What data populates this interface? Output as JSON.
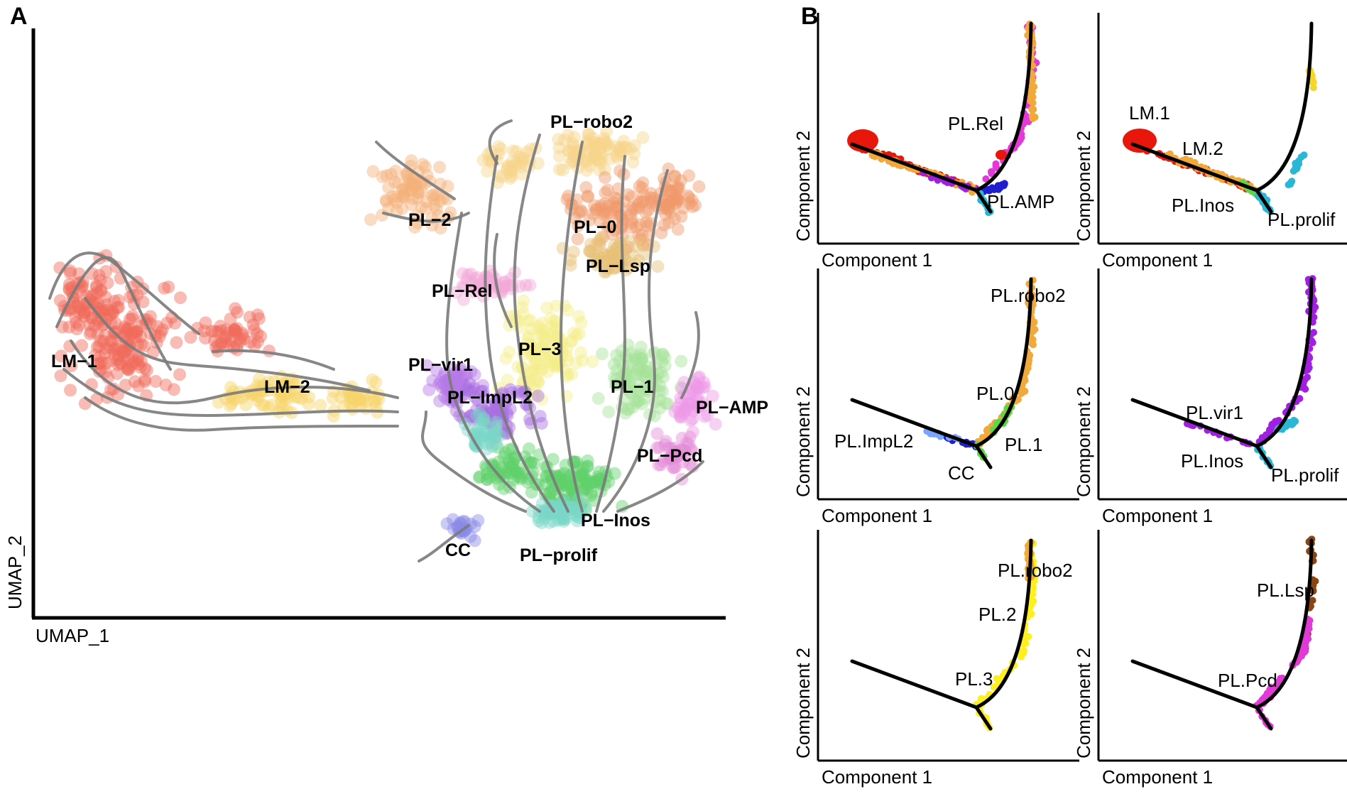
{
  "panel_a_letter": "A",
  "panel_b_letter": "B",
  "chart_data": [
    {
      "type": "scatter",
      "panel": "A",
      "xlabel": "UMAP_1",
      "ylabel": "UMAP_2",
      "overlay": "RNA velocity stream arrows",
      "clusters": [
        {
          "name": "LM−1",
          "color": "#ef6a5a"
        },
        {
          "name": "LM−2",
          "color": "#f7d46a"
        },
        {
          "name": "PL−robo2",
          "color": "#f7d48a"
        },
        {
          "name": "PL−2",
          "color": "#f3b27a"
        },
        {
          "name": "PL−0",
          "color": "#f09a6a"
        },
        {
          "name": "PL−Lsp",
          "color": "#e6c278"
        },
        {
          "name": "PL−Rel",
          "color": "#f2a8d6"
        },
        {
          "name": "PL−3",
          "color": "#f5ee8a"
        },
        {
          "name": "PL−vir1",
          "color": "#b57be6"
        },
        {
          "name": "PL−ImpL2",
          "color": "#a86ee0"
        },
        {
          "name": "PL−1",
          "color": "#a6e39a"
        },
        {
          "name": "PL−AMP",
          "color": "#ee9ae6"
        },
        {
          "name": "PL−Pcd",
          "color": "#e58bd6"
        },
        {
          "name": "PL−Inos",
          "color": "#5fd06a"
        },
        {
          "name": "PL−prolif",
          "color": "#7ad8c8"
        },
        {
          "name": "CC",
          "color": "#8a8ae6"
        }
      ]
    },
    {
      "type": "scatter",
      "panel": "B",
      "subplot": 1,
      "xlabel": "Component 1",
      "ylabel": "Component 2",
      "labels": [
        "PL.Rel",
        "PL.AMP"
      ]
    },
    {
      "type": "scatter",
      "panel": "B",
      "subplot": 2,
      "xlabel": "Component 1",
      "ylabel": "Component 2",
      "labels": [
        "LM.1",
        "LM.2",
        "PL.Inos",
        "PL.prolif"
      ]
    },
    {
      "type": "scatter",
      "panel": "B",
      "subplot": 3,
      "xlabel": "Component 1",
      "ylabel": "Component 2",
      "labels": [
        "PL.robo2",
        "PL.0",
        "PL.ImpL2",
        "PL.1",
        "CC"
      ]
    },
    {
      "type": "scatter",
      "panel": "B",
      "subplot": 4,
      "xlabel": "Component 1",
      "ylabel": "Component 2",
      "labels": [
        "PL.vir1",
        "PL.Inos",
        "PL.prolif"
      ]
    },
    {
      "type": "scatter",
      "panel": "B",
      "subplot": 5,
      "xlabel": "Component 1",
      "ylabel": "Component 2",
      "labels": [
        "PL.robo2",
        "PL.2",
        "PL.3"
      ]
    },
    {
      "type": "scatter",
      "panel": "B",
      "subplot": 6,
      "xlabel": "Component 1",
      "ylabel": "Component 2",
      "labels": [
        "PL.Lsp",
        "PL.Pcd"
      ]
    }
  ],
  "colors": {
    "red": "#e8170c",
    "orange": "#f2a93b",
    "yellow": "#f5d72a",
    "magenta": "#e23ad6",
    "purple": "#a01fe0",
    "blue": "#1f1fd0",
    "cyan": "#2ab7d6",
    "green": "#5fd64a",
    "brown": "#8b4513",
    "bright_yellow": "#ffef1f"
  }
}
